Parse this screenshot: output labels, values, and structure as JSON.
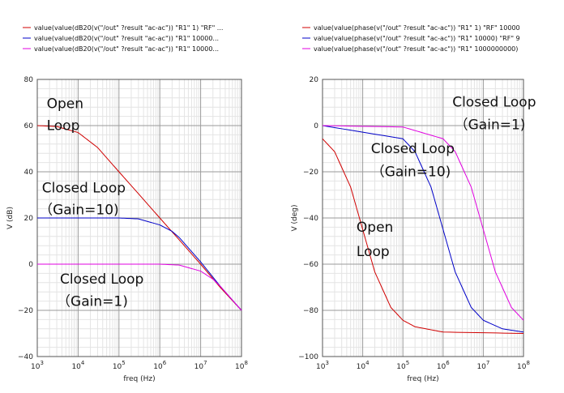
{
  "chart_data": [
    {
      "type": "line",
      "xscale": "log",
      "xlim": [
        1000,
        100000000
      ],
      "ylim": [
        -40,
        80
      ],
      "xlabel": "freq (Hz)",
      "ylabel": "V (dB)",
      "xticks": [
        "10^3",
        "10^4",
        "10^5",
        "10^6",
        "10^7",
        "10^8"
      ],
      "yticks": [
        -40,
        -20,
        0,
        20,
        40,
        60,
        80
      ],
      "grid": true,
      "legend_position": "top",
      "series": [
        {
          "name": "value(value(dB20(v(\"/out\" ?result \"ac-ac\")) \"R1\" 1) \"RF\" ...",
          "color": "#d00000",
          "x": [
            1000,
            3000,
            10000,
            30000,
            100000,
            300000,
            1000000,
            3000000,
            10000000,
            30000000,
            100000000
          ],
          "y": [
            60,
            59.6,
            57,
            50.5,
            40,
            30.5,
            20,
            10.5,
            0,
            -10,
            -20
          ]
        },
        {
          "name": "value(value(dB20(v(\"/out\" ?result \"ac-ac\")) \"R1\" 10000...",
          "color": "#0000c8",
          "x": [
            1000,
            10000,
            100000,
            300000,
            1000000,
            2000000,
            3000000,
            10000000,
            30000000,
            100000000
          ],
          "y": [
            20,
            20,
            20,
            19.6,
            17,
            14.2,
            11.5,
            1,
            -9.5,
            -20
          ]
        },
        {
          "name": "value(value(dB20(v(\"/out\" ?result \"ac-ac\")) \"R1\" 10000...",
          "color": "#e000e0",
          "x": [
            1000,
            100000,
            1000000,
            3000000,
            10000000,
            20000000,
            30000000,
            100000000
          ],
          "y": [
            0,
            0,
            0,
            -0.4,
            -3,
            -6.5,
            -9.5,
            -20
          ]
        }
      ],
      "annotations": [
        {
          "text": "Open",
          "x": 1700,
          "y": 67.5
        },
        {
          "text": "Loop",
          "x": 1700,
          "y": 58
        },
        {
          "text": "Closed Loop",
          "x": 1300,
          "y": 31
        },
        {
          "text": "（Gain=10)",
          "x": 1100,
          "y": 21.5
        },
        {
          "text": "Closed Loop",
          "x": 3600,
          "y": -8.5
        },
        {
          "text": "（Gain=1)",
          "x": 3000,
          "y": -18
        }
      ]
    },
    {
      "type": "line",
      "xscale": "log",
      "xlim": [
        1000,
        100000000
      ],
      "ylim": [
        -100,
        20
      ],
      "xlabel": "freq (Hz)",
      "ylabel": "V (deg)",
      "xticks": [
        "10^3",
        "10^4",
        "10^5",
        "10^6",
        "10^7",
        "10^8"
      ],
      "yticks": [
        -100,
        -80,
        -60,
        -40,
        -20,
        0,
        20
      ],
      "grid": true,
      "legend_position": "top",
      "series": [
        {
          "name": "value(value(phase(v(\"/out\" ?result \"ac-ac\")) \"R1\" 1) \"RF\" 10000",
          "color": "#d00000",
          "x": [
            1000,
            2000,
            5000,
            10000,
            20000,
            50000,
            100000,
            200000,
            1000000,
            100000000
          ],
          "y": [
            -5.7,
            -11.3,
            -26.6,
            -45,
            -63.4,
            -78.7,
            -84.3,
            -87.1,
            -89.4,
            -90
          ]
        },
        {
          "name": "value(value(phase(v(\"/out\" ?result \"ac-ac\")) \"R1\" 10000) \"RF\" 9",
          "color": "#0000c8",
          "x": [
            1000,
            100000,
            200000,
            500000,
            1000000,
            2000000,
            5000000,
            10000000,
            30000000,
            100000000
          ],
          "y": [
            0,
            -5.7,
            -11.3,
            -26.6,
            -45,
            -63.4,
            -78.7,
            -84.3,
            -88,
            -89.4
          ]
        },
        {
          "name": "value(value(phase(v(\"/out\" ?result \"ac-ac\")) \"R1\" 1000000000)",
          "color": "#e000e0",
          "x": [
            1000,
            100000,
            1000000,
            2000000,
            5000000,
            10000000,
            20000000,
            50000000,
            100000000
          ],
          "y": [
            0,
            -0.6,
            -5.7,
            -11.3,
            -26.6,
            -45,
            -63.4,
            -78.7,
            -84.3
          ]
        }
      ],
      "annotations": [
        {
          "text": "Closed Loop",
          "x": 1700000,
          "y": 8.3
        },
        {
          "text": "（Gain=1)",
          "x": 1900000,
          "y": -1.5
        },
        {
          "text": "Closed Loop",
          "x": 16000,
          "y": -12
        },
        {
          "text": "（Gain=10)",
          "x": 16000,
          "y": -22
        },
        {
          "text": "Open",
          "x": 7000,
          "y": -46
        },
        {
          "text": "Loop",
          "x": 7000,
          "y": -56.5
        }
      ]
    }
  ]
}
